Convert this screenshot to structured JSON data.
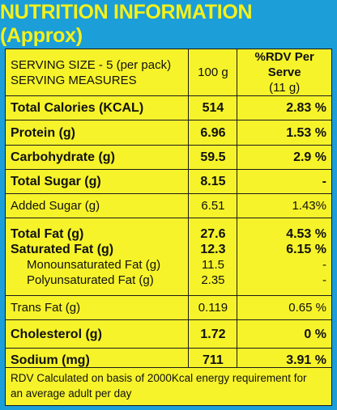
{
  "title": "NUTRITION INFORMATION (Approx)",
  "header": {
    "serving_size": "SERVING SIZE - 5 (per pack)",
    "serving_measures": "SERVING MEASURES",
    "per_100": "100 g",
    "rdv_line1": "%RDV Per Serve",
    "rdv_line2": "(11 g)"
  },
  "rows": [
    {
      "label": "Total Calories (KCAL)",
      "value": "514",
      "rdv": "2.83 %"
    },
    {
      "label": "Protein (g)",
      "value": "6.96",
      "rdv": "1.53 %"
    },
    {
      "label": "Carbohydrate (g)",
      "value": "59.5",
      "rdv": "2.9 %"
    },
    {
      "label": "Total Sugar (g)",
      "value": "8.15",
      "rdv": "-"
    },
    {
      "label": "Added Sugar (g)",
      "value": "6.51",
      "rdv": "1.43%"
    }
  ],
  "fat_group": [
    {
      "label": "Total Fat (g)",
      "value": "27.6",
      "rdv": "4.53 %"
    },
    {
      "label": "Saturated Fat (g)",
      "value": "12.3",
      "rdv": "6.15 %"
    },
    {
      "label": "Monounsaturated Fat (g)",
      "value": "11.5",
      "rdv": "-"
    },
    {
      "label": "Polyunsaturated Fat (g)",
      "value": "2.35",
      "rdv": "-"
    }
  ],
  "rows2": [
    {
      "label": "Trans Fat (g)",
      "value": "0.119",
      "rdv": "0.65 %"
    },
    {
      "label": "Cholesterol (g)",
      "value": "1.72",
      "rdv": "0 %"
    },
    {
      "label": "Sodium (mg)",
      "value": "711",
      "rdv": "3.91 %"
    }
  ],
  "footnote_line1": "RDV Calculated on basis of 2000Kcal energy requirement for",
  "footnote_line2": "an average adult per day",
  "colors": {
    "background": "#1c9ed8",
    "table": "#f6f32a",
    "title_text": "#f5f11a"
  }
}
